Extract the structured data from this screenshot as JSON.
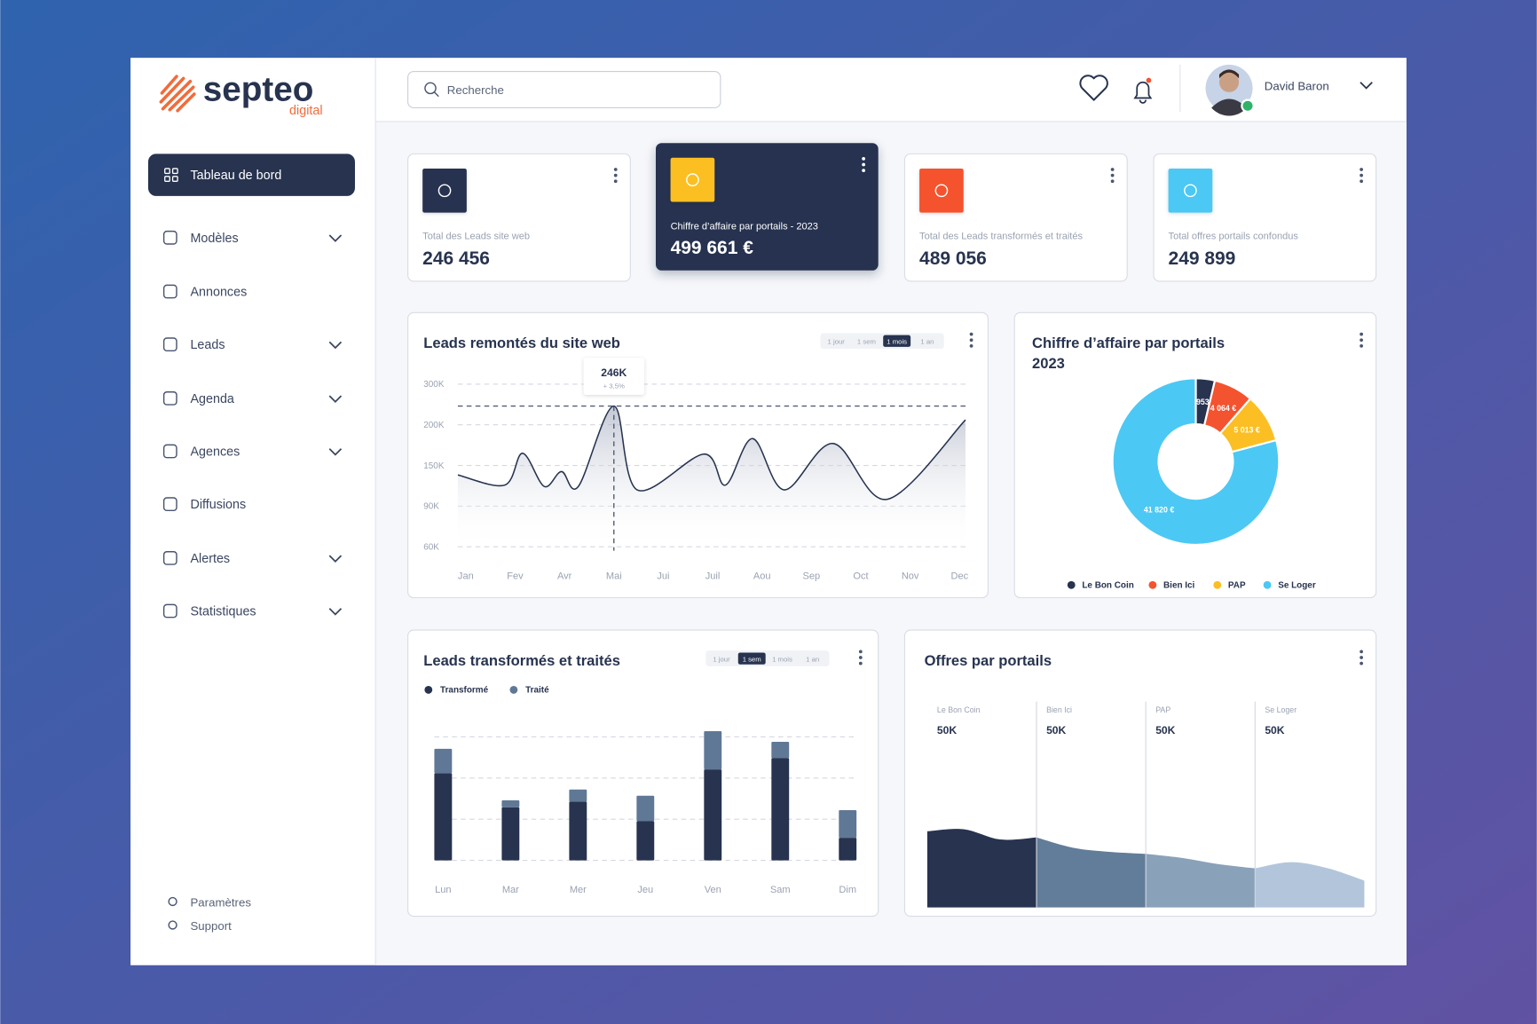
{
  "brand": {
    "name": "septeo",
    "sub": "digital"
  },
  "sidebar": {
    "active": "Tableau de bord",
    "items": [
      {
        "label": "Modèles",
        "expandable": true
      },
      {
        "label": "Annonces",
        "expandable": false
      },
      {
        "label": "Leads",
        "expandable": true
      },
      {
        "label": "Agenda",
        "expandable": true
      },
      {
        "label": "Agences",
        "expandable": true
      },
      {
        "label": "Diffusions",
        "expandable": false
      },
      {
        "label": "Alertes",
        "expandable": true
      },
      {
        "label": "Statistiques",
        "expandable": true
      }
    ],
    "footer": [
      "Paramètres",
      "Support"
    ]
  },
  "header": {
    "search": "Recherche",
    "user": "David Baron"
  },
  "kpis": [
    {
      "label": "Total des Leads site web",
      "value": "246 456",
      "color": "#27334f"
    },
    {
      "label": "Chiffre d’affaire par portails - 2023",
      "value": "499 661 €",
      "color": "#fbbf24",
      "highlighted": true
    },
    {
      "label": "Total des Leads transformés et traités",
      "value": "489 056",
      "color": "#f4532f"
    },
    {
      "label": "Total offres portails confondus",
      "value": "249 899",
      "color": "#4cc8f4"
    }
  ],
  "chart_data": [
    {
      "type": "line",
      "title": "Leads remontés du site web",
      "ranges": [
        "1 jour",
        "1 sem",
        "1 mois",
        "1 an"
      ],
      "active_range": 2,
      "x": [
        -0.16,
        0.79,
        1.15,
        1.59,
        1.94,
        2.28,
        3.0,
        3.47,
        4.82,
        5.26,
        5.81,
        6.45,
        7.44,
        8.53,
        10.12
      ],
      "values": [
        136000,
        121000,
        165000,
        119000,
        141000,
        119000,
        246000,
        114000,
        164000,
        121000,
        183000,
        114000,
        177000,
        100000,
        212000
      ],
      "color": "#27334f",
      "xlim": [
        -0.16,
        10.12
      ],
      "xticks": [
        {
          "value": 0,
          "label": "Jan"
        },
        {
          "value": 1,
          "label": "Fev"
        },
        {
          "value": 2,
          "label": "Avr"
        },
        {
          "value": 3,
          "label": "Mai"
        },
        {
          "value": 4,
          "label": "Jui"
        },
        {
          "value": 5,
          "label": "Juil"
        },
        {
          "value": 6,
          "label": "Aou"
        },
        {
          "value": 7,
          "label": "Sep"
        },
        {
          "value": 8,
          "label": "Oct"
        },
        {
          "value": 9,
          "label": "Nov"
        },
        {
          "value": 10,
          "label": "Dec"
        }
      ],
      "ylim": [
        60000,
        300000
      ],
      "yticks": [
        {
          "value": 300000,
          "label": "300K"
        },
        {
          "value": 200000,
          "label": "200K"
        },
        {
          "value": 150000,
          "label": "150K"
        },
        {
          "value": 90000,
          "label": "90K"
        },
        {
          "value": 60000,
          "label": "60K"
        }
      ],
      "grid": true,
      "highlight": {
        "x": 3,
        "value": 246000,
        "label": "246K",
        "change": "+ 3,5%"
      }
    },
    {
      "type": "pie",
      "title": "Chiffre d’affaire par portails",
      "subtitle": "2023",
      "donut": true,
      "categories": [
        "Le Bon Coin",
        "Bien Ici",
        "PAP",
        "Se Loger"
      ],
      "values": [
        1953,
        4064,
        5013,
        41820
      ],
      "value_labels": [
        "1 953 €",
        "4 064 €",
        "5 013 €",
        "41 820 €"
      ],
      "colors": [
        "#27334f",
        "#f4532f",
        "#fbbf24",
        "#4cc8f4"
      ]
    },
    {
      "type": "bar",
      "title": "Leads transformés et traités",
      "stacked": true,
      "ranges": [
        "1 jour",
        "1 sem",
        "1 mois",
        "1 an"
      ],
      "active_range": 1,
      "categories": [
        "Lun",
        "Mar",
        "Mer",
        "Jeu",
        "Ven",
        "Sam",
        "Dim"
      ],
      "series": [
        {
          "name": "Transformé",
          "color": "#27334f",
          "values": [
            21.2,
            12.9,
            14.3,
            9.5,
            22.1,
            24.8,
            5.5
          ]
        },
        {
          "name": "Traité",
          "color": "#5f7896",
          "values": [
            5.9,
            1.7,
            2.9,
            6.2,
            9.3,
            4.0,
            6.7
          ]
        }
      ],
      "ylim": [
        0,
        30
      ],
      "gridlines": [
        0,
        10,
        20,
        30
      ]
    },
    {
      "type": "area",
      "title": "Offres par portails",
      "ylim": [
        0,
        100
      ],
      "series": [
        {
          "name": "Le Bon Coin",
          "total": 50000,
          "total_label": "50K",
          "color": "#27334f",
          "values": [
            37,
            38,
            33,
            34
          ]
        },
        {
          "name": "Bien Ici",
          "total": 50000,
          "total_label": "50K",
          "color": "#627d99",
          "values": [
            34,
            29,
            27,
            26
          ]
        },
        {
          "name": "PAP",
          "total": 50000,
          "total_label": "50K",
          "color": "#8aa1ba",
          "values": [
            26,
            24,
            21,
            19
          ]
        },
        {
          "name": "Se Loger",
          "total": 50000,
          "total_label": "50K",
          "color": "#b2c5db",
          "values": [
            19,
            22,
            19,
            13
          ]
        }
      ]
    }
  ]
}
